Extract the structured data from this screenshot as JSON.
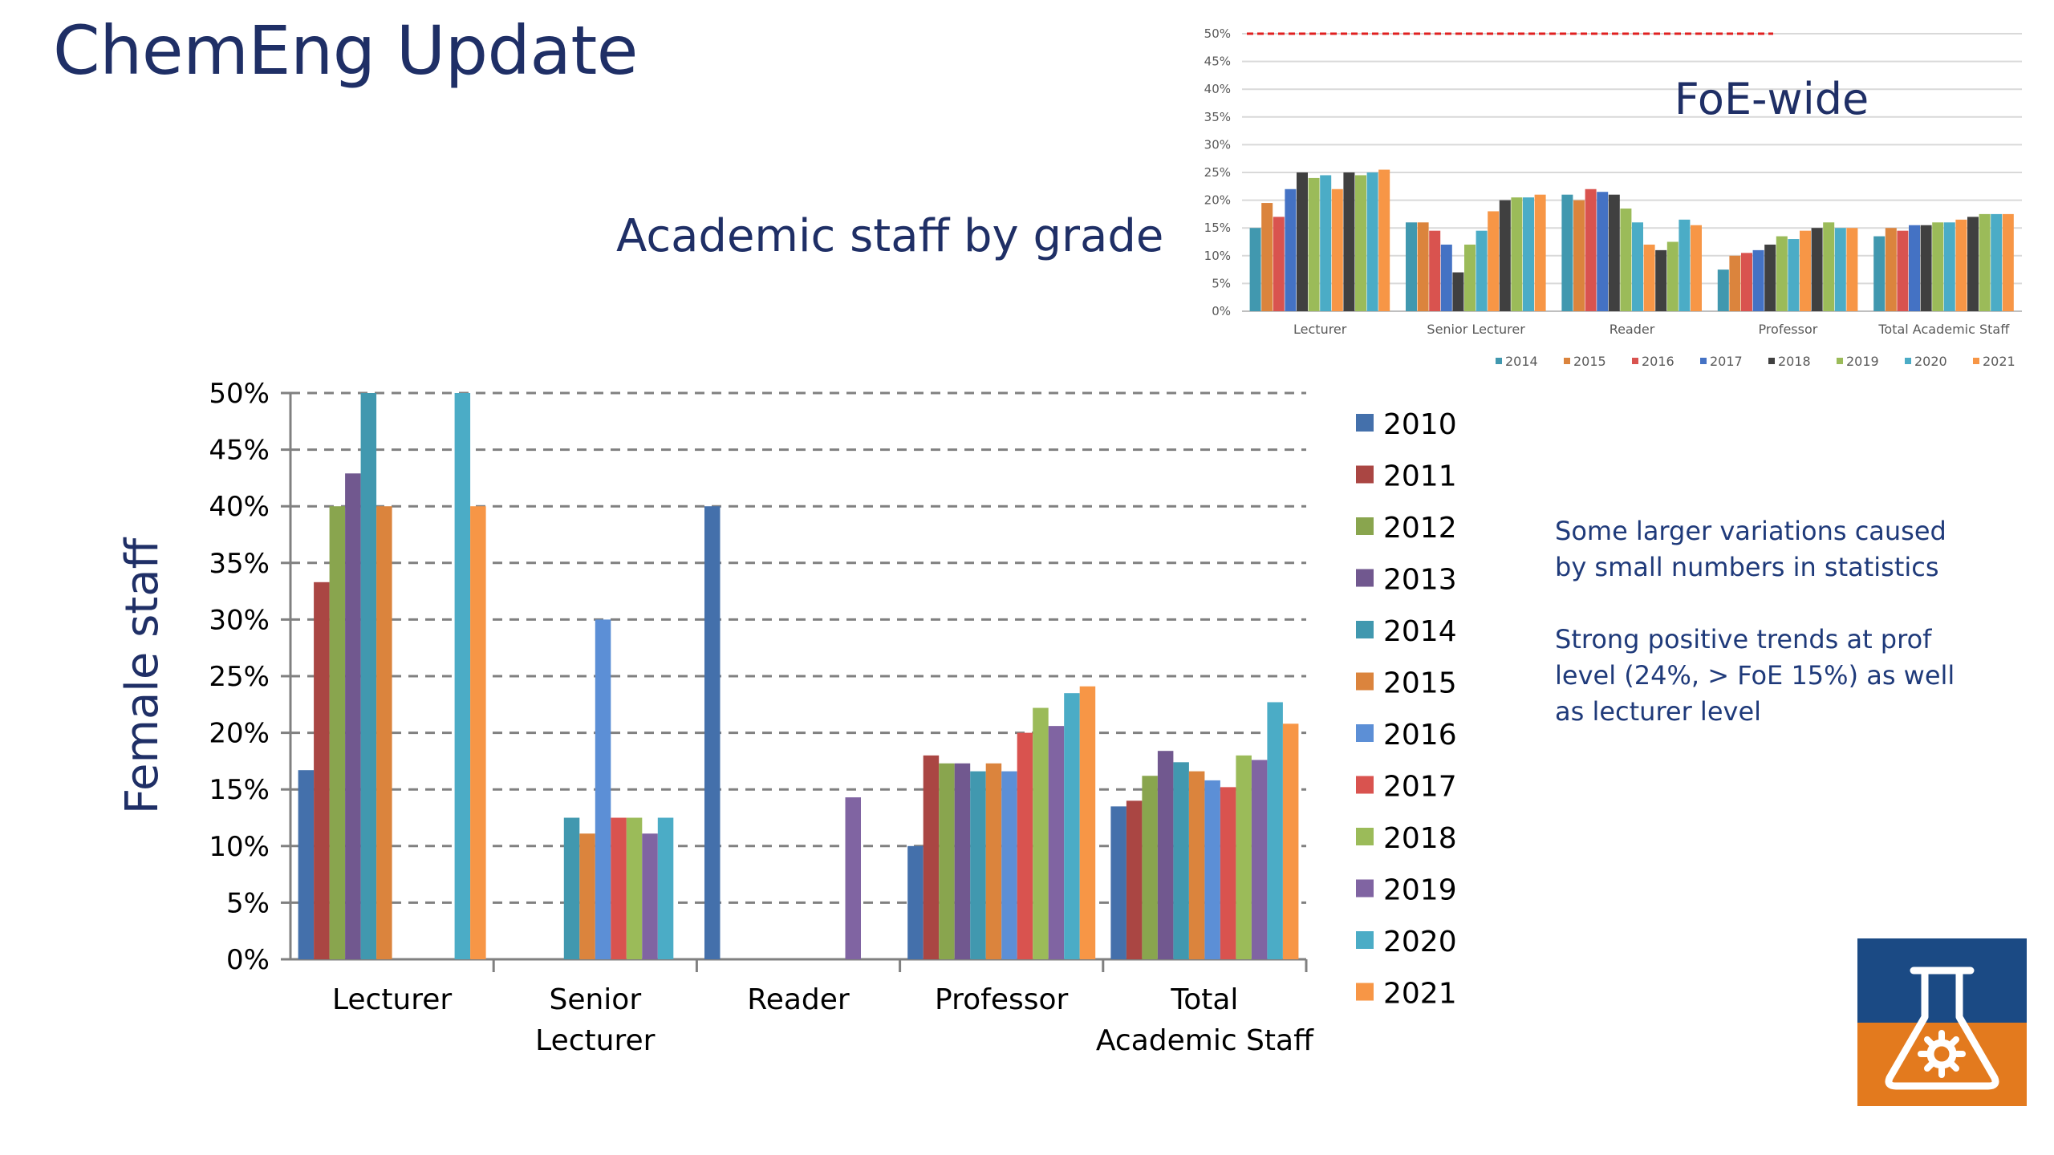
{
  "slide": {
    "title": "ChemEng Update",
    "subtitle": "Academic staff by grade",
    "notes": [
      "Some larger variations caused by small numbers in statistics",
      "Strong positive trends at prof level (24%, > FoE 15%) as well as lecturer level"
    ]
  },
  "colors": {
    "title": "#1f2f66",
    "logo_top": "#1b4a84",
    "logo_bottom": "#e37a1e",
    "series": {
      "2010": "#4470ab",
      "2011": "#aa4643",
      "2012": "#89a54e",
      "2013": "#71588f",
      "2014": "#4198af",
      "2015": "#db843d",
      "2016": "#5c8fd6",
      "2017": "#d9534f",
      "2018": "#9bbb59",
      "2019": "#8064a2",
      "2020": "#4bacc6",
      "2021": "#f79646"
    },
    "foe_series": {
      "2014": "#4198af",
      "2015": "#db843d",
      "2016": "#d9534f",
      "2017": "#4472c4",
      "2018": "#404040",
      "2019": "#9bbb59",
      "2020": "#4bacc6",
      "2021": "#f79646"
    }
  },
  "chart_data": [
    {
      "id": "main",
      "type": "bar",
      "title": "",
      "xlabel": "",
      "ylabel": "Female staff",
      "ylim": [
        0,
        50
      ],
      "yticks": [
        0,
        5,
        10,
        15,
        20,
        25,
        30,
        35,
        40,
        45,
        50
      ],
      "ytick_labels": [
        "0%",
        "5%",
        "10%",
        "15%",
        "20%",
        "25%",
        "30%",
        "35%",
        "40%",
        "45%",
        "50%"
      ],
      "grid": true,
      "legend": "right",
      "categories": [
        [
          "Lecturer"
        ],
        [
          "Senior",
          "Lecturer"
        ],
        [
          "Reader"
        ],
        [
          "Professor"
        ],
        [
          "Total",
          "Academic Staff"
        ]
      ],
      "series": [
        {
          "name": "2010",
          "values": [
            16.7,
            null,
            40,
            10,
            13.5
          ]
        },
        {
          "name": "2011",
          "values": [
            33.3,
            null,
            null,
            18,
            14
          ]
        },
        {
          "name": "2012",
          "values": [
            40,
            null,
            null,
            17.3,
            16.2
          ]
        },
        {
          "name": "2013",
          "values": [
            42.9,
            null,
            null,
            17.3,
            18.4
          ]
        },
        {
          "name": "2014",
          "values": [
            50,
            12.5,
            null,
            16.6,
            17.4
          ]
        },
        {
          "name": "2015",
          "values": [
            40,
            11.1,
            null,
            17.3,
            16.6
          ]
        },
        {
          "name": "2016",
          "values": [
            null,
            30,
            null,
            16.6,
            15.8
          ]
        },
        {
          "name": "2017",
          "values": [
            null,
            12.5,
            null,
            20,
            15.2
          ]
        },
        {
          "name": "2018",
          "values": [
            null,
            12.5,
            null,
            22.2,
            18
          ]
        },
        {
          "name": "2019",
          "values": [
            null,
            11.1,
            14.3,
            20.6,
            17.6
          ]
        },
        {
          "name": "2020",
          "values": [
            50,
            12.5,
            null,
            23.5,
            22.7
          ]
        },
        {
          "name": "2021",
          "values": [
            40,
            null,
            null,
            24.1,
            20.8
          ]
        }
      ]
    },
    {
      "id": "foe",
      "type": "bar",
      "title": "FoE-wide",
      "xlabel": "",
      "ylabel": "",
      "ylim": [
        0,
        50
      ],
      "yticks": [
        0,
        5,
        10,
        15,
        20,
        25,
        30,
        35,
        40,
        45,
        50
      ],
      "ytick_labels": [
        "0%",
        "5%",
        "10%",
        "15%",
        "20%",
        "25%",
        "30%",
        "35%",
        "40%",
        "45%",
        "50%"
      ],
      "grid": true,
      "reference_line": 50,
      "legend": "bottom",
      "categories": [
        "Lecturer",
        "Senior Lecturer",
        "Reader",
        "Professor",
        "Total Academic Staff"
      ],
      "series": [
        {
          "name": "2014",
          "values": [
            15,
            16,
            21,
            7.5,
            13.5
          ]
        },
        {
          "name": "2015",
          "values": [
            19.5,
            16,
            20,
            10,
            15
          ]
        },
        {
          "name": "2016",
          "values": [
            17,
            14.5,
            22,
            10.5,
            14.5
          ]
        },
        {
          "name": "2017",
          "values": [
            22,
            12,
            21.5,
            11,
            15.5
          ]
        },
        {
          "name": "2018",
          "values": [
            25,
            7,
            21,
            12,
            15.5
          ]
        },
        {
          "name": "2019",
          "values": [
            24,
            12,
            18.5,
            13.5,
            16
          ]
        },
        {
          "name": "2020",
          "values": [
            24.5,
            14.5,
            16,
            13,
            16
          ]
        },
        {
          "name": "2021",
          "values": [
            22,
            18,
            12,
            14.5,
            16.5
          ]
        },
        {
          "name": "",
          "values": [
            25,
            20,
            11,
            15,
            17
          ]
        },
        {
          "name": "",
          "values": [
            24.5,
            20.5,
            12.5,
            16,
            17.5
          ]
        },
        {
          "name": "",
          "values": [
            25,
            20.5,
            16.5,
            15,
            17.5
          ]
        },
        {
          "name": "",
          "values": [
            25.5,
            21,
            15.5,
            15,
            17.5
          ]
        }
      ]
    }
  ]
}
